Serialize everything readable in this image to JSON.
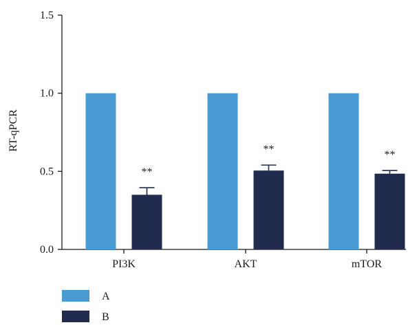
{
  "chart_data": {
    "type": "bar",
    "title": "",
    "xlabel": "",
    "ylabel": "RT-qPCR",
    "ylim": [
      0,
      1.5
    ],
    "yticks": [
      "0.0",
      "0.5",
      "1.0",
      "1.5"
    ],
    "categories": [
      "PI3K",
      "AKT",
      "mTOR"
    ],
    "series": [
      {
        "name": "A",
        "color": "#4a9bd3",
        "values": [
          1.0,
          1.0,
          1.0
        ],
        "errors": [
          0,
          0,
          0
        ]
      },
      {
        "name": "B",
        "color": "#202b4d",
        "values": [
          0.35,
          0.505,
          0.485
        ],
        "errors": [
          0.045,
          0.035,
          0.02
        ]
      }
    ],
    "annotations": [
      {
        "category": "PI3K",
        "series": "B",
        "text": "**"
      },
      {
        "category": "AKT",
        "series": "B",
        "text": "**"
      },
      {
        "category": "mTOR",
        "series": "B",
        "text": "**"
      }
    ],
    "grid": false,
    "legend_position": "bottom-left"
  }
}
